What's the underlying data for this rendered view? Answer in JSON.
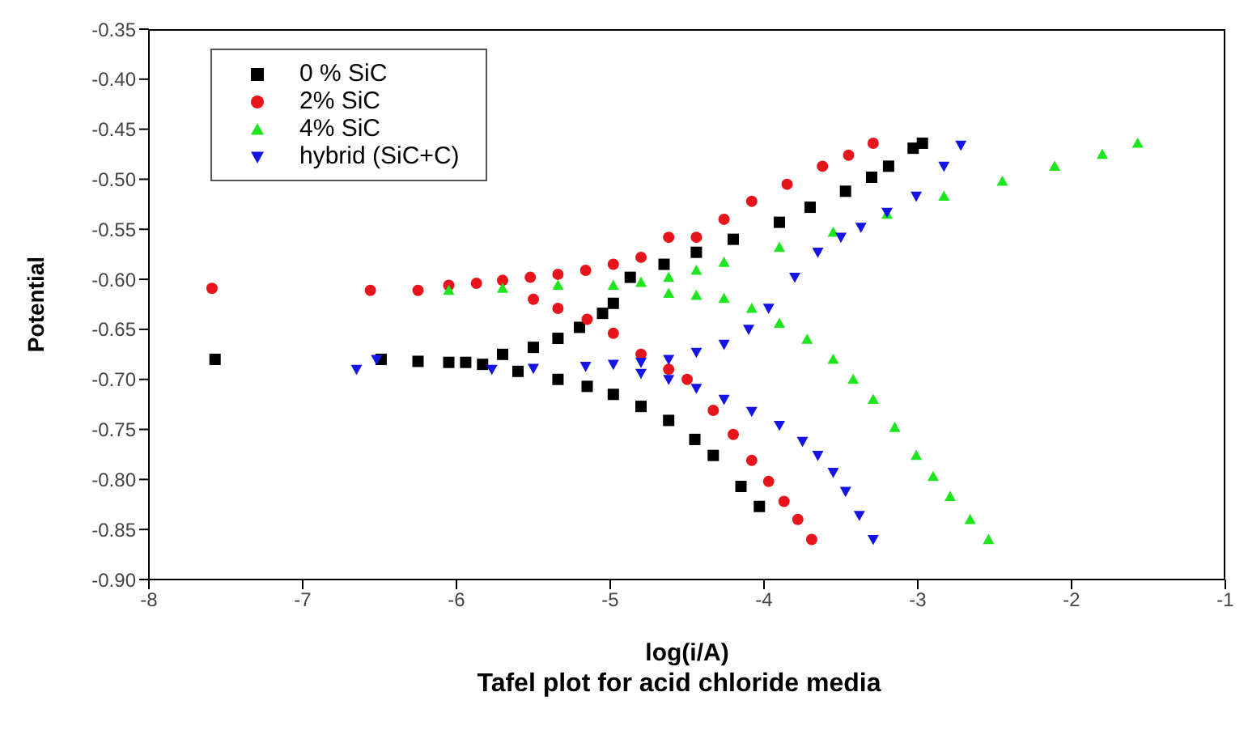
{
  "chart_data": {
    "type": "scatter",
    "title": "Tafel plot for acid chloride media",
    "xlabel": "log(i/A)",
    "ylabel": "Potential",
    "xlim": [
      -8,
      -1
    ],
    "xticks": [
      -8,
      -7,
      -6,
      -5,
      -4,
      -3,
      -2,
      -1
    ],
    "ylim": [
      -0.9,
      -0.35
    ],
    "yticks": [
      {
        "value": -0.9,
        "label": "-0.90"
      },
      -0.85,
      {
        "value": -0.8,
        "label": "-0.80"
      },
      -0.75,
      {
        "value": -0.7,
        "label": "-0.70"
      },
      -0.65,
      {
        "value": -0.6,
        "label": "-0.60"
      },
      -0.55,
      {
        "value": -0.5,
        "label": "-0.50"
      },
      -0.45,
      {
        "value": -0.4,
        "label": "-0.40"
      },
      -0.35
    ],
    "grid": false,
    "legend": "top left",
    "series": [
      {
        "name": "0 % SiC",
        "color": "#000000",
        "marker": "square",
        "x": [
          -7.57,
          -6.49,
          -6.25,
          -6.05,
          -5.94,
          -5.83,
          -5.6,
          -5.34,
          -5.15,
          -4.98,
          -4.8,
          -4.62,
          -4.45,
          -4.33,
          -4.15,
          -4.03,
          -5.7,
          -5.5,
          -5.34,
          -5.2,
          -5.05,
          -4.98,
          -4.87,
          -4.65,
          -4.44,
          -4.2,
          -3.9,
          -3.7,
          -3.47,
          -3.3,
          -3.19,
          -3.03,
          -2.97
        ],
        "values": [
          -0.68,
          -0.68,
          -0.682,
          -0.683,
          -0.683,
          -0.685,
          -0.692,
          -0.7,
          -0.707,
          -0.715,
          -0.727,
          -0.741,
          -0.76,
          -0.776,
          -0.807,
          -0.827,
          -0.675,
          -0.668,
          -0.659,
          -0.648,
          -0.634,
          -0.624,
          -0.598,
          -0.585,
          -0.573,
          -0.56,
          -0.543,
          -0.528,
          -0.512,
          -0.498,
          -0.487,
          -0.469,
          -0.464
        ]
      },
      {
        "name": "2% SiC",
        "color": "#e8141c",
        "marker": "circle",
        "x": [
          -7.59,
          -6.56,
          -6.25,
          -6.05,
          -5.87,
          -5.7,
          -5.52,
          -5.34,
          -5.16,
          -4.98,
          -4.8,
          -4.62,
          -4.44,
          -4.26,
          -4.08,
          -3.85,
          -3.62,
          -3.45,
          -3.29,
          -5.5,
          -5.34,
          -5.15,
          -4.98,
          -4.8,
          -4.62,
          -4.5,
          -4.33,
          -4.2,
          -4.08,
          -3.97,
          -3.87,
          -3.78,
          -3.69
        ],
        "values": [
          -0.609,
          -0.611,
          -0.611,
          -0.606,
          -0.604,
          -0.601,
          -0.598,
          -0.595,
          -0.591,
          -0.585,
          -0.578,
          -0.558,
          -0.558,
          -0.54,
          -0.522,
          -0.505,
          -0.487,
          -0.476,
          -0.464,
          -0.62,
          -0.629,
          -0.64,
          -0.654,
          -0.675,
          -0.69,
          -0.7,
          -0.731,
          -0.755,
          -0.781,
          -0.802,
          -0.822,
          -0.84,
          -0.86
        ]
      },
      {
        "name": "4% SiC",
        "color": "#1ee61e",
        "marker": "triangle",
        "x": [
          -6.05,
          -5.7,
          -5.34,
          -4.98,
          -4.8,
          -4.62,
          -4.44,
          -4.26,
          -3.9,
          -3.55,
          -3.2,
          -2.83,
          -2.45,
          -2.11,
          -1.8,
          -1.57,
          -4.62,
          -4.44,
          -4.26,
          -4.08,
          -3.9,
          -3.72,
          -3.55,
          -3.42,
          -3.29,
          -3.15,
          -3.01,
          -2.9,
          -2.79,
          -2.66,
          -2.54
        ],
        "values": [
          -0.611,
          -0.609,
          -0.606,
          -0.606,
          -0.603,
          -0.598,
          -0.591,
          -0.583,
          -0.568,
          -0.553,
          -0.535,
          -0.517,
          -0.502,
          -0.487,
          -0.475,
          -0.464,
          -0.614,
          -0.616,
          -0.619,
          -0.629,
          -0.644,
          -0.66,
          -0.68,
          -0.7,
          -0.72,
          -0.748,
          -0.776,
          -0.797,
          -0.817,
          -0.84,
          -0.86
        ]
      },
      {
        "name": "hybrid (SiC+C)",
        "color": "#1414e6",
        "marker": "triangle-down",
        "x": [
          -6.65,
          -6.52,
          -5.77,
          -5.5,
          -5.16,
          -4.98,
          -4.8,
          -4.62,
          -4.44,
          -4.26,
          -4.1,
          -3.97,
          -3.8,
          -3.65,
          -3.5,
          -3.37,
          -3.2,
          -3.01,
          -2.83,
          -2.72,
          -4.8,
          -4.62,
          -4.44,
          -4.26,
          -4.08,
          -3.9,
          -3.75,
          -3.65,
          -3.55,
          -3.47,
          -3.38,
          -3.29
        ],
        "values": [
          -0.69,
          -0.68,
          -0.69,
          -0.689,
          -0.687,
          -0.685,
          -0.683,
          -0.68,
          -0.673,
          -0.665,
          -0.65,
          -0.629,
          -0.598,
          -0.573,
          -0.558,
          -0.548,
          -0.533,
          -0.517,
          -0.487,
          -0.466,
          -0.694,
          -0.7,
          -0.709,
          -0.72,
          -0.732,
          -0.746,
          -0.762,
          -0.776,
          -0.793,
          -0.812,
          -0.836,
          -0.86
        ]
      }
    ]
  }
}
